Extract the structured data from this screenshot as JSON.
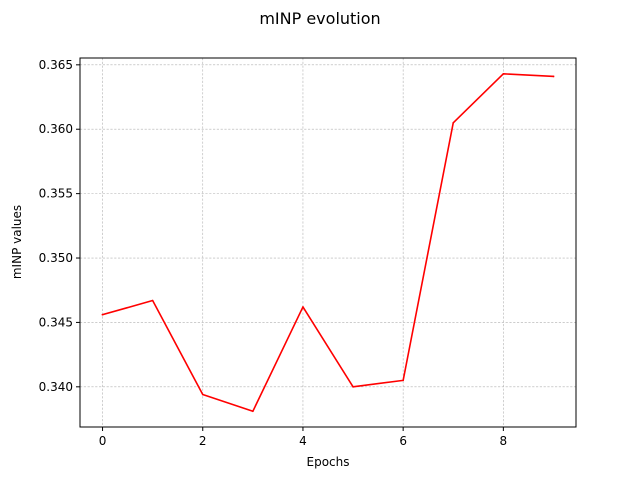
{
  "chart_data": {
    "type": "line",
    "title": "mINP evolution",
    "xlabel": "Epochs",
    "ylabel": "mINP values",
    "x": [
      0,
      1,
      2,
      3,
      4,
      5,
      6,
      7,
      8,
      9
    ],
    "series": [
      {
        "values": [
          0.3456,
          0.3467,
          0.3394,
          0.3381,
          0.3462,
          0.34,
          0.3405,
          0.3605,
          0.3643,
          0.3641
        ],
        "color": "#ff0000"
      }
    ],
    "xlim": [
      -0.45,
      9.45
    ],
    "ylim": [
      0.33688,
      0.36553
    ],
    "xticks": [
      0,
      2,
      4,
      6,
      8
    ],
    "yticks": [
      0.34,
      0.345,
      0.35,
      0.355,
      0.36,
      0.365
    ],
    "xtick_labels": [
      "0",
      "2",
      "4",
      "6",
      "8"
    ],
    "ytick_labels": [
      "0.340",
      "0.345",
      "0.350",
      "0.355",
      "0.360",
      "0.365"
    ],
    "grid": true,
    "grid_color": "#b0b0b0",
    "legend": "none"
  }
}
